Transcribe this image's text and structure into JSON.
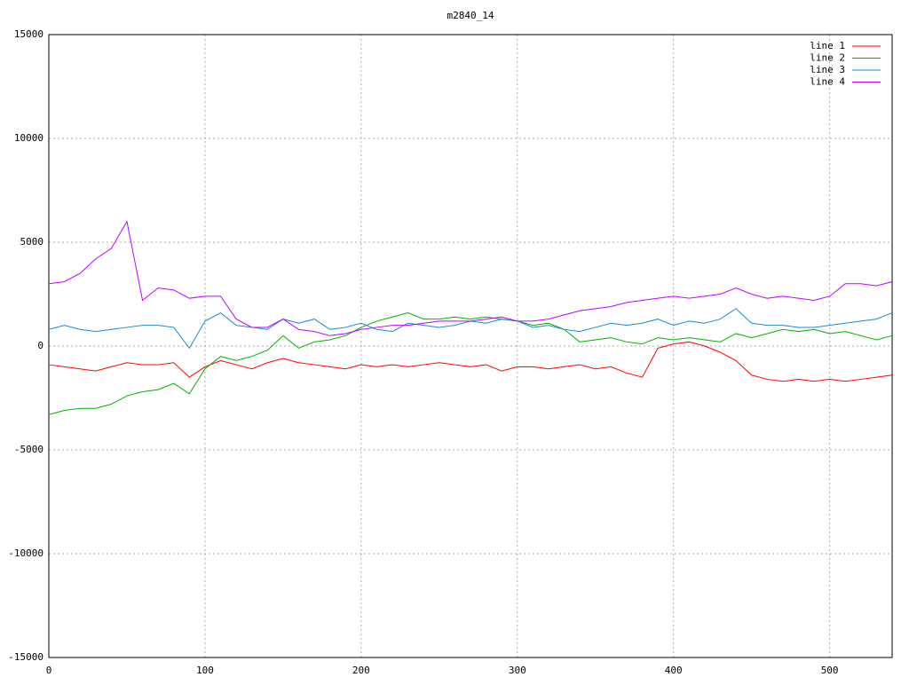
{
  "chart_data": {
    "type": "line",
    "title": "m2840_14",
    "x": [
      0,
      10,
      20,
      30,
      40,
      50,
      60,
      70,
      80,
      90,
      100,
      110,
      120,
      130,
      140,
      150,
      160,
      170,
      180,
      190,
      200,
      210,
      220,
      230,
      240,
      250,
      260,
      270,
      280,
      290,
      300,
      310,
      320,
      330,
      340,
      350,
      360,
      370,
      380,
      390,
      400,
      410,
      420,
      430,
      440,
      450,
      460,
      470,
      480,
      490,
      500,
      510,
      520,
      530,
      540
    ],
    "series": [
      {
        "name": "line 1",
        "color": "#ff0000",
        "values": [
          -900,
          -1000,
          -1100,
          -1200,
          -1000,
          -800,
          -900,
          -900,
          -800,
          -1500,
          -1000,
          -700,
          -900,
          -1100,
          -800,
          -600,
          -800,
          -900,
          -1000,
          -1100,
          -900,
          -1000,
          -900,
          -1000,
          -900,
          -800,
          -900,
          -1000,
          -900,
          -1200,
          -1000,
          -1000,
          -1100,
          -1000,
          -900,
          -1100,
          -1000,
          -1300,
          -1500,
          -100,
          100,
          200,
          0,
          -300,
          -700,
          -1400,
          -1600,
          -1700,
          -1600,
          -1700,
          -1600,
          -1700,
          -1600,
          -1500,
          -1400
        ]
      },
      {
        "name": "line 2",
        "color": "#00b000",
        "values": [
          -3300,
          -3100,
          -3000,
          -3000,
          -2800,
          -2400,
          -2200,
          -2100,
          -1800,
          -2300,
          -1100,
          -500,
          -700,
          -500,
          -200,
          500,
          -100,
          200,
          300,
          500,
          900,
          1200,
          1400,
          1600,
          1300,
          1300,
          1400,
          1300,
          1400,
          1300,
          1200,
          1000,
          1100,
          800,
          200,
          300,
          400,
          200,
          100,
          400,
          300,
          400,
          300,
          200,
          600,
          400,
          600,
          800,
          700,
          800,
          600,
          700,
          500,
          300,
          500
        ]
      },
      {
        "name": "line 3",
        "color": "#1a8ccc",
        "values": [
          800,
          1000,
          800,
          700,
          800,
          900,
          1000,
          1000,
          900,
          -100,
          1200,
          1600,
          1000,
          900,
          800,
          1300,
          1100,
          1300,
          800,
          900,
          1100,
          800,
          700,
          1100,
          1000,
          900,
          1000,
          1200,
          1100,
          1300,
          1200,
          900,
          1000,
          800,
          700,
          900,
          1100,
          1000,
          1100,
          1300,
          1000,
          1200,
          1100,
          1300,
          1800,
          1100,
          1000,
          1000,
          900,
          900,
          1000,
          1100,
          1200,
          1300,
          1600
        ]
      },
      {
        "name": "line 4",
        "color": "#c000ff",
        "values": [
          3000,
          3100,
          3500,
          4200,
          4700,
          6000,
          2200,
          2800,
          2700,
          2300,
          2400,
          2400,
          1300,
          900,
          900,
          1300,
          800,
          700,
          500,
          600,
          800,
          900,
          1000,
          1000,
          1100,
          1200,
          1200,
          1200,
          1300,
          1400,
          1200,
          1200,
          1300,
          1500,
          1700,
          1800,
          1900,
          2100,
          2200,
          2300,
          2400,
          2300,
          2400,
          2500,
          2800,
          2500,
          2300,
          2400,
          2300,
          2200,
          2400,
          3000,
          3000,
          2900,
          3100
        ]
      }
    ],
    "xlim": [
      0,
      540
    ],
    "xticks": [
      0,
      100,
      200,
      300,
      400,
      500
    ],
    "ylim": [
      -15000,
      15000
    ],
    "yticks": [
      -15000,
      -10000,
      -5000,
      0,
      5000,
      10000,
      15000
    ],
    "grid": true,
    "legend": "top-right"
  }
}
